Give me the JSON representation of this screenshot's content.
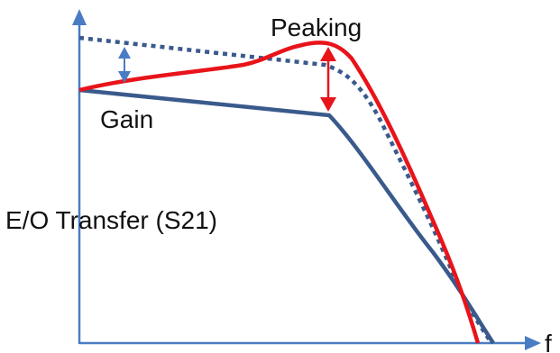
{
  "labels": {
    "peaking": "Peaking",
    "gain": "Gain",
    "y_axis": "E/O Transfer (S21)",
    "x_axis": "f"
  },
  "colors": {
    "axis": "#4a7cc4",
    "baseline_curve": "#3a5a8c",
    "peaked_curve": "#e8141a",
    "dotted_curve": "#3a5a8c",
    "gain_arrow": "#4a7cc4",
    "peaking_arrow": "#e8141a"
  }
}
